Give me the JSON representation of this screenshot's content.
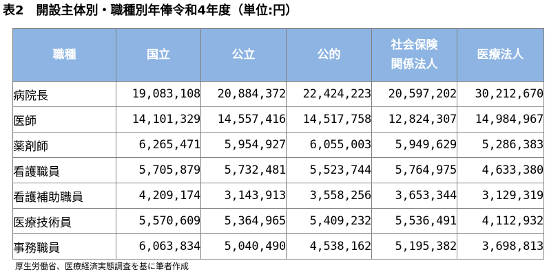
{
  "title": "表2　開設主体別・職種別年俸令和4年度（単位:円）",
  "headers": [
    "職種",
    "国立",
    "公立",
    "公的",
    "社会保険\n関係法人",
    "医療法人"
  ],
  "rows": [
    {
      "label": "病院長",
      "values": [
        "19,083,108",
        "20,884,372",
        "22,424,223",
        "20,597,202",
        "30,212,670"
      ]
    },
    {
      "label": "医師",
      "values": [
        "14,101,329",
        "14,557,416",
        "14,517,758",
        "12,824,307",
        "14,984,967"
      ]
    },
    {
      "label": "薬剤師",
      "values": [
        "6,265,471",
        "5,954,927",
        "6,055,003",
        "5,949,629",
        "5,286,383"
      ]
    },
    {
      "label": "看護職員",
      "values": [
        "5,705,879",
        "5,732,481",
        "5,523,744",
        "5,764,975",
        "4,633,380"
      ]
    },
    {
      "label": "看護補助職員",
      "values": [
        "4,209,174",
        "3,143,913",
        "3,558,256",
        "3,653,344",
        "3,129,319"
      ]
    },
    {
      "label": "医療技術員",
      "values": [
        "5,570,609",
        "5,364,965",
        "5,409,232",
        "5,536,491",
        "4,112,932"
      ]
    },
    {
      "label": "事務職員",
      "values": [
        "6,063,834",
        "5,040,490",
        "4,538,162",
        "5,195,382",
        "3,698,813"
      ]
    }
  ],
  "source": "厚生労働省、医療経済実態調査を基に筆者作成",
  "colors": {
    "header_bg": "#8db4e2",
    "header_text": "#ffffff",
    "border": "#808080"
  }
}
